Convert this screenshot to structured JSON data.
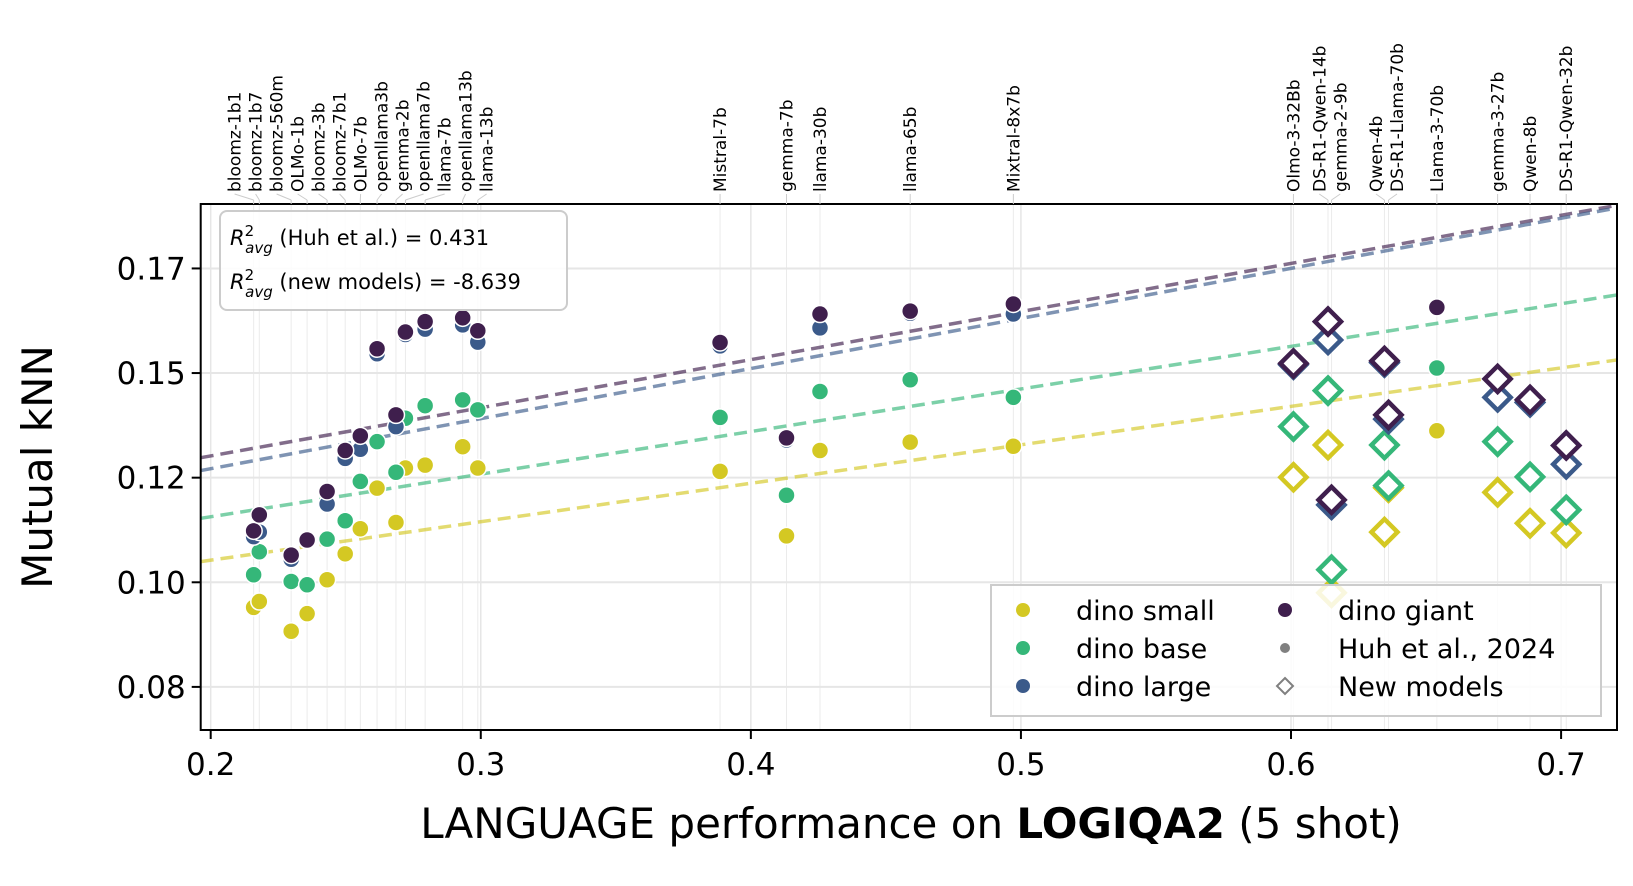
{
  "chart_data": {
    "type": "scatter",
    "xlabel_prefix": "LANGUAGE performance on ",
    "xlabel_bold": "LOGIQA2",
    "xlabel_suffix": " (5 shot)",
    "ylabel": "Mutual kNN",
    "xlim": [
      0.1963,
      0.7207
    ],
    "ylim": [
      0.0647,
      0.1904
    ],
    "xticks": [
      0.2,
      0.3,
      0.4,
      0.5,
      0.6,
      0.7
    ],
    "xtick_labels": [
      "0.2",
      "0.3",
      "0.4",
      "0.5",
      "0.6",
      "0.7"
    ],
    "yticks": [
      0.075,
      0.1,
      0.125,
      0.15,
      0.175
    ],
    "ytick_labels": [
      "0.08",
      "0.10",
      "0.12",
      "0.15",
      "0.17"
    ],
    "grid": true,
    "series": [
      {
        "key": "small",
        "name": "dino small",
        "color": "#d4c823"
      },
      {
        "key": "base",
        "name": "dino base",
        "color": "#35b779"
      },
      {
        "key": "large",
        "name": "dino large",
        "color": "#3b5a8a"
      },
      {
        "key": "giant",
        "name": "dino giant",
        "color": "#3f1f4d"
      }
    ],
    "marker_legend": [
      {
        "name": "Huh et al., 2024",
        "marker": "circle"
      },
      {
        "name": "New models",
        "marker": "diamond"
      }
    ],
    "legend_position": "lower-right",
    "fit_lines": [
      {
        "series": "giant",
        "slope": 0.115,
        "intercept": 0.1072
      },
      {
        "series": "large",
        "slope": 0.1197,
        "intercept": 0.1032
      },
      {
        "series": "base",
        "slope": 0.1018,
        "intercept": 0.0953
      },
      {
        "series": "small",
        "slope": 0.0919,
        "intercept": 0.0869
      }
    ],
    "annotation": [
      {
        "r": "R",
        "sup": "2",
        "sub": "avg",
        "text": " (Huh et al.) = 0.431"
      },
      {
        "r": "R",
        "sup": "2",
        "sub": "avg",
        "text": " (new models) = -8.639"
      }
    ],
    "models": [
      {
        "name": "bloomz-1b1",
        "x": 0.2159,
        "marker": "circle",
        "small": 0.094,
        "base": 0.1018,
        "large": 0.1109,
        "giant": 0.1123
      },
      {
        "name": "bloomz-1b7",
        "x": 0.218,
        "marker": "circle",
        "small": 0.0954,
        "base": 0.1073,
        "large": 0.112,
        "giant": 0.1161
      },
      {
        "name": "bloomz-560m",
        "x": 0.2298,
        "marker": "circle",
        "small": 0.0883,
        "base": 0.1002,
        "large": 0.1055,
        "giant": 0.1065
      },
      {
        "name": "OLMo-1b",
        "x": 0.2357,
        "marker": "circle",
        "small": 0.0925,
        "base": 0.0994,
        "large": 0.11,
        "giant": 0.1101
      },
      {
        "name": "bloomz-3b",
        "x": 0.2431,
        "marker": "circle",
        "small": 0.1006,
        "base": 0.1103,
        "large": 0.1187,
        "giant": 0.1217
      },
      {
        "name": "bloomz-7b1",
        "x": 0.2498,
        "marker": "circle",
        "small": 0.1068,
        "base": 0.1147,
        "large": 0.1296,
        "giant": 0.1315
      },
      {
        "name": "OLMo-7b",
        "x": 0.2554,
        "marker": "circle",
        "small": 0.1128,
        "base": 0.1241,
        "large": 0.1318,
        "giant": 0.135
      },
      {
        "name": "openllama3b",
        "x": 0.2616,
        "marker": "circle",
        "small": 0.1225,
        "base": 0.1336,
        "large": 0.1546,
        "giant": 0.1558
      },
      {
        "name": "gemma-2b",
        "x": 0.2686,
        "marker": "circle",
        "small": 0.1143,
        "base": 0.1263,
        "large": 0.1372,
        "giant": 0.14
      },
      {
        "name": "openllama7b",
        "x": 0.2721,
        "marker": "circle",
        "small": 0.1273,
        "base": 0.1392,
        "large": 0.1592,
        "giant": 0.1598
      },
      {
        "name": "llama-7b",
        "x": 0.2794,
        "marker": "circle",
        "small": 0.128,
        "base": 0.1422,
        "large": 0.1605,
        "giant": 0.1623
      },
      {
        "name": "openllama13b",
        "x": 0.2933,
        "marker": "circle",
        "small": 0.1324,
        "base": 0.1436,
        "large": 0.1615,
        "giant": 0.1632
      },
      {
        "name": "llama-13b",
        "x": 0.2989,
        "marker": "circle",
        "small": 0.1273,
        "base": 0.1412,
        "large": 0.1574,
        "giant": 0.1601
      },
      {
        "name": "Mistral-7b",
        "x": 0.3886,
        "marker": "circle",
        "small": 0.1265,
        "base": 0.1394,
        "large": 0.1565,
        "giant": 0.1573
      },
      {
        "name": "gemma-7b",
        "x": 0.4132,
        "marker": "circle",
        "small": 0.1111,
        "base": 0.1208,
        "large": 0.134,
        "giant": 0.1345
      },
      {
        "name": "llama-30b",
        "x": 0.4256,
        "marker": "circle",
        "small": 0.1315,
        "base": 0.1456,
        "large": 0.1608,
        "giant": 0.1641
      },
      {
        "name": "llama-65b",
        "x": 0.459,
        "marker": "circle",
        "small": 0.1335,
        "base": 0.1484,
        "large": 0.1643,
        "giant": 0.1648
      },
      {
        "name": "Mixtral-8x7b",
        "x": 0.4972,
        "marker": "circle",
        "small": 0.1325,
        "base": 0.1442,
        "large": 0.1641,
        "giant": 0.1665
      },
      {
        "name": "Olmo-3-32Bb",
        "x": 0.6009,
        "marker": "diamond",
        "small": 0.1251,
        "base": 0.1372,
        "large": 0.152,
        "giant": 0.1523
      },
      {
        "name": "DS-R1-Qwen-14b",
        "x": 0.6137,
        "marker": "diamond",
        "small": 0.1328,
        "base": 0.1458,
        "large": 0.1579,
        "giant": 0.1623
      },
      {
        "name": "gemma-2-9b",
        "x": 0.615,
        "marker": "diamond",
        "small": 0.0975,
        "base": 0.103,
        "large": 0.1185,
        "giant": 0.1197
      },
      {
        "name": "Qwen-4b",
        "x": 0.6346,
        "marker": "diamond",
        "small": 0.112,
        "base": 0.1328,
        "large": 0.1525,
        "giant": 0.1529
      },
      {
        "name": "DS-R1-Llama-70b",
        "x": 0.6361,
        "marker": "diamond",
        "small": 0.1226,
        "base": 0.1231,
        "large": 0.139,
        "giant": 0.14
      },
      {
        "name": "Llama-3-70b",
        "x": 0.654,
        "marker": "circle",
        "small": 0.1362,
        "base": 0.1512,
        "large": null,
        "giant": 0.1657
      },
      {
        "name": "gemma-3-27b",
        "x": 0.6765,
        "marker": "diamond",
        "small": 0.1215,
        "base": 0.1336,
        "large": 0.1442,
        "giant": 0.1486
      },
      {
        "name": "Qwen-8b",
        "x": 0.6885,
        "marker": "diamond",
        "small": 0.1141,
        "base": 0.1252,
        "large": 0.143,
        "giant": 0.1436
      },
      {
        "name": "DS-R1-Qwen-32b",
        "x": 0.7019,
        "marker": "diamond",
        "small": 0.1118,
        "base": 0.1173,
        "large": 0.1282,
        "giant": 0.1327
      }
    ]
  }
}
